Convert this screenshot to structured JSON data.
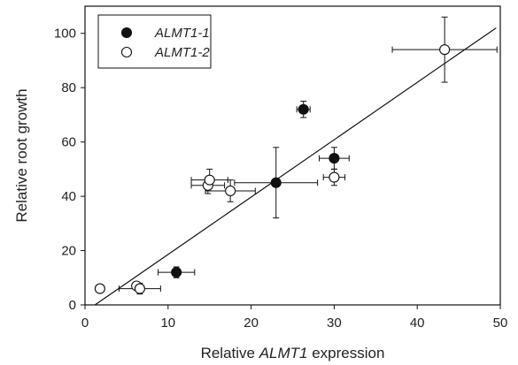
{
  "chart_data": {
    "type": "scatter",
    "title": "",
    "xlabel": {
      "prefix": "Relative ",
      "italic": "ALMT1",
      "suffix": " expression"
    },
    "ylabel": "Relative root growth",
    "xlim": [
      0,
      50
    ],
    "ylim": [
      0,
      110
    ],
    "xticks": [
      0,
      10,
      20,
      30,
      40,
      50
    ],
    "yticks": [
      0,
      20,
      40,
      60,
      80,
      100
    ],
    "grid": false,
    "legend_position": "top-left",
    "series": [
      {
        "name": "ALMT1-1",
        "marker": "filled-circle",
        "color": "#111111",
        "points": [
          {
            "x": 11.0,
            "y": 12,
            "xerr": 2.2,
            "yerr": 2
          },
          {
            "x": 23.0,
            "y": 45,
            "xerr": 5.0,
            "yerr": 13
          },
          {
            "x": 26.3,
            "y": 72,
            "xerr": 0.8,
            "yerr": 3
          },
          {
            "x": 30.0,
            "y": 54,
            "xerr": 1.8,
            "yerr": 4
          }
        ]
      },
      {
        "name": "ALMT1-2",
        "marker": "open-circle",
        "color": "#111111",
        "points": [
          {
            "x": 1.8,
            "y": 6,
            "xerr": 0,
            "yerr": 0
          },
          {
            "x": 6.2,
            "y": 7,
            "xerr": 0,
            "yerr": 0
          },
          {
            "x": 6.6,
            "y": 6,
            "xerr": 2.5,
            "yerr": 2
          },
          {
            "x": 14.8,
            "y": 44,
            "xerr": 2.0,
            "yerr": 3
          },
          {
            "x": 15.0,
            "y": 46,
            "xerr": 2.2,
            "yerr": 4
          },
          {
            "x": 17.5,
            "y": 42,
            "xerr": 3.0,
            "yerr": 4
          },
          {
            "x": 30.0,
            "y": 47,
            "xerr": 1.3,
            "yerr": 3
          },
          {
            "x": 43.3,
            "y": 94,
            "xerr": 6.3,
            "yerr": 12
          }
        ]
      }
    ],
    "regression_line": {
      "x": [
        1.2,
        49.5
      ],
      "y": [
        0,
        102
      ]
    }
  }
}
